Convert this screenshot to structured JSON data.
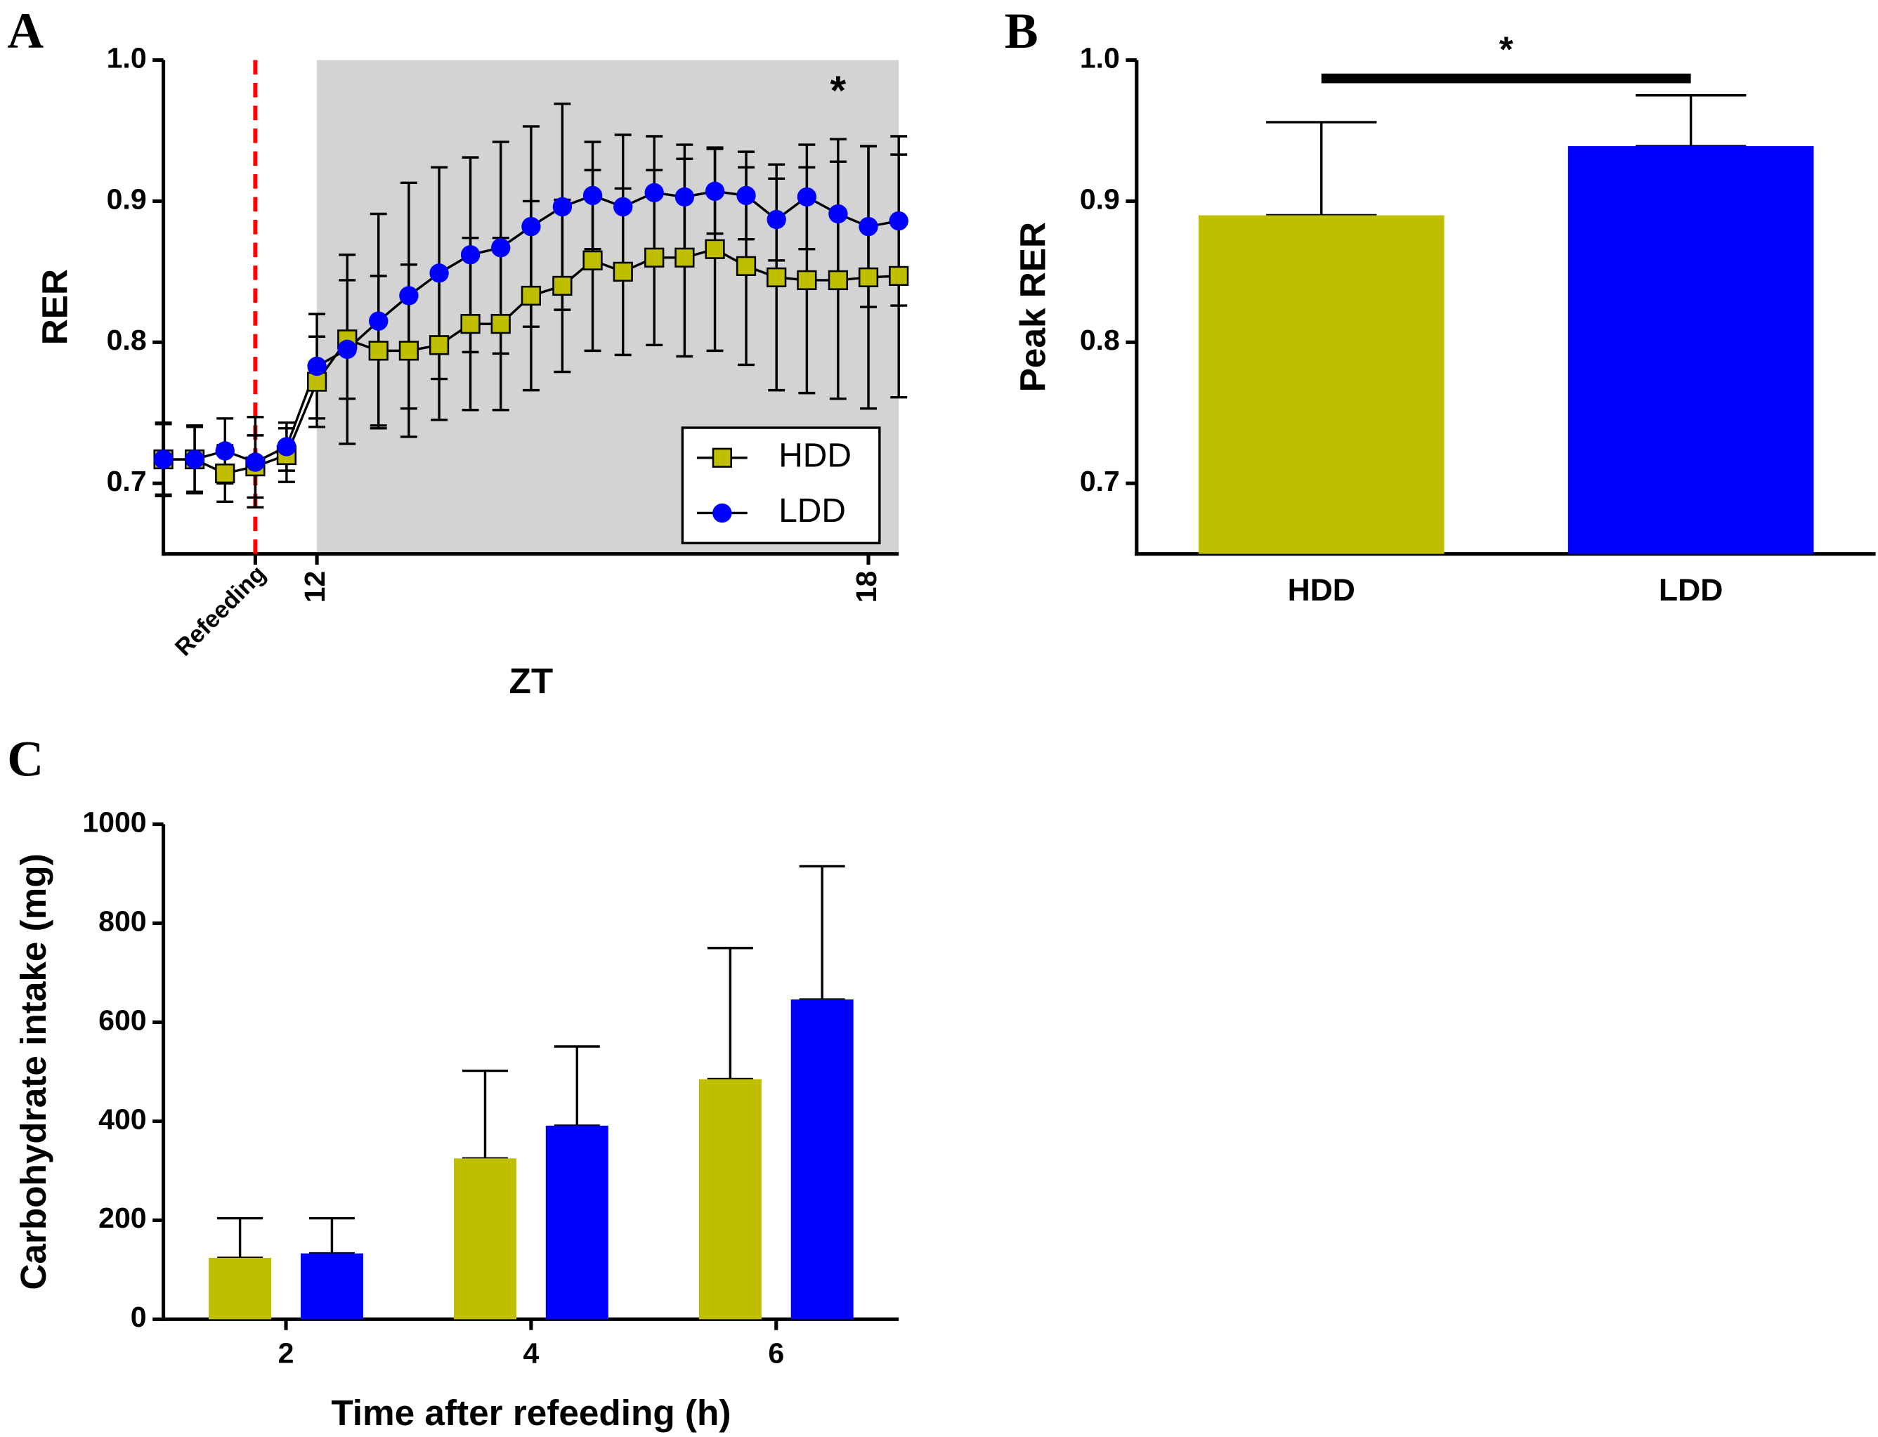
{
  "chart_data": [
    {
      "type": "line",
      "panel": "A",
      "xlabel": "ZT",
      "ylabel": "RER",
      "x": [
        10.33,
        10.67,
        11,
        11.33,
        11.67,
        12,
        12.33,
        12.67,
        13,
        13.33,
        13.67,
        14,
        14.33,
        14.67,
        15,
        15.33,
        15.67,
        16,
        16.33,
        16.67,
        17,
        17.33,
        17.67,
        18,
        18.33
      ],
      "xlim": [
        10.33,
        18.33
      ],
      "xticks": [
        {
          "value": 11.33,
          "label": "Refeeding"
        },
        12,
        18
      ],
      "ylim": [
        0.65,
        1.0
      ],
      "yticks": [
        0.7,
        0.8,
        0.9,
        {
          "value": 1.0,
          "label": "1.0"
        }
      ],
      "shaded_x": [
        12,
        18.33
      ],
      "vline": {
        "x": 11.33,
        "color": "#ff0000"
      },
      "annotations": [
        {
          "text": "*",
          "x": 17.67
        }
      ],
      "legend": "lower right",
      "series": [
        {
          "name": "HDD",
          "color": "#bfbf00",
          "marker": "square",
          "values": [
            0.717,
            0.717,
            0.707,
            0.712,
            0.72,
            0.772,
            0.802,
            0.794,
            0.794,
            0.798,
            0.813,
            0.813,
            0.833,
            0.84,
            0.858,
            0.85,
            0.86,
            0.86,
            0.866,
            0.854,
            0.846,
            0.844,
            0.844,
            0.846,
            0.847
          ],
          "errors": [
            0.025,
            0.023,
            0.02,
            0.022,
            0.019,
            0.032,
            0.042,
            0.053,
            0.061,
            0.053,
            0.061,
            0.061,
            0.067,
            0.061,
            0.064,
            0.059,
            0.062,
            0.07,
            0.072,
            0.07,
            0.08,
            0.08,
            0.084,
            0.093,
            0.086
          ]
        },
        {
          "name": "LDD",
          "color": "#0000ff",
          "marker": "circle",
          "values": [
            0.717,
            0.717,
            0.723,
            0.715,
            0.726,
            0.783,
            0.795,
            0.815,
            0.833,
            0.849,
            0.862,
            0.867,
            0.882,
            0.896,
            0.904,
            0.896,
            0.906,
            0.903,
            0.907,
            0.904,
            0.887,
            0.903,
            0.891,
            0.882,
            0.886
          ],
          "errors": [
            0.026,
            0.024,
            0.023,
            0.032,
            0.017,
            0.037,
            0.067,
            0.076,
            0.08,
            0.075,
            0.069,
            0.075,
            0.071,
            0.073,
            0.038,
            0.051,
            0.04,
            0.037,
            0.03,
            0.031,
            0.029,
            0.037,
            0.053,
            0.057,
            0.06
          ]
        }
      ]
    },
    {
      "type": "bar",
      "panel": "B",
      "ylabel": "Peak RER",
      "categories": [
        "HDD",
        "LDD"
      ],
      "values": [
        0.89,
        0.939
      ],
      "errors": [
        0.066,
        0.036
      ],
      "colors": [
        "#bfbf00",
        "#0000ff"
      ],
      "ylim": [
        0.65,
        1.0
      ],
      "yticks": [
        0.7,
        0.8,
        0.9,
        {
          "value": 1.0,
          "label": "1.0"
        }
      ],
      "significance": {
        "text": "*",
        "between": [
          0,
          1
        ],
        "y": 0.987
      }
    },
    {
      "type": "grouped_bar",
      "panel": "C",
      "xlabel": "Time after refeeding (h)",
      "ylabel": "Carbohydrate intake (mg)",
      "categories": [
        "2",
        "4",
        "6"
      ],
      "ylim": [
        0,
        1000
      ],
      "yticks": [
        0,
        200,
        400,
        600,
        800,
        1000
      ],
      "series": [
        {
          "name": "HDD",
          "color": "#bfbf00",
          "values": [
            124,
            325,
            485
          ],
          "errors": [
            80,
            177,
            265
          ]
        },
        {
          "name": "LDD",
          "color": "#0000ff",
          "values": [
            133,
            391,
            646
          ],
          "errors": [
            71,
            160,
            269
          ]
        }
      ]
    }
  ]
}
